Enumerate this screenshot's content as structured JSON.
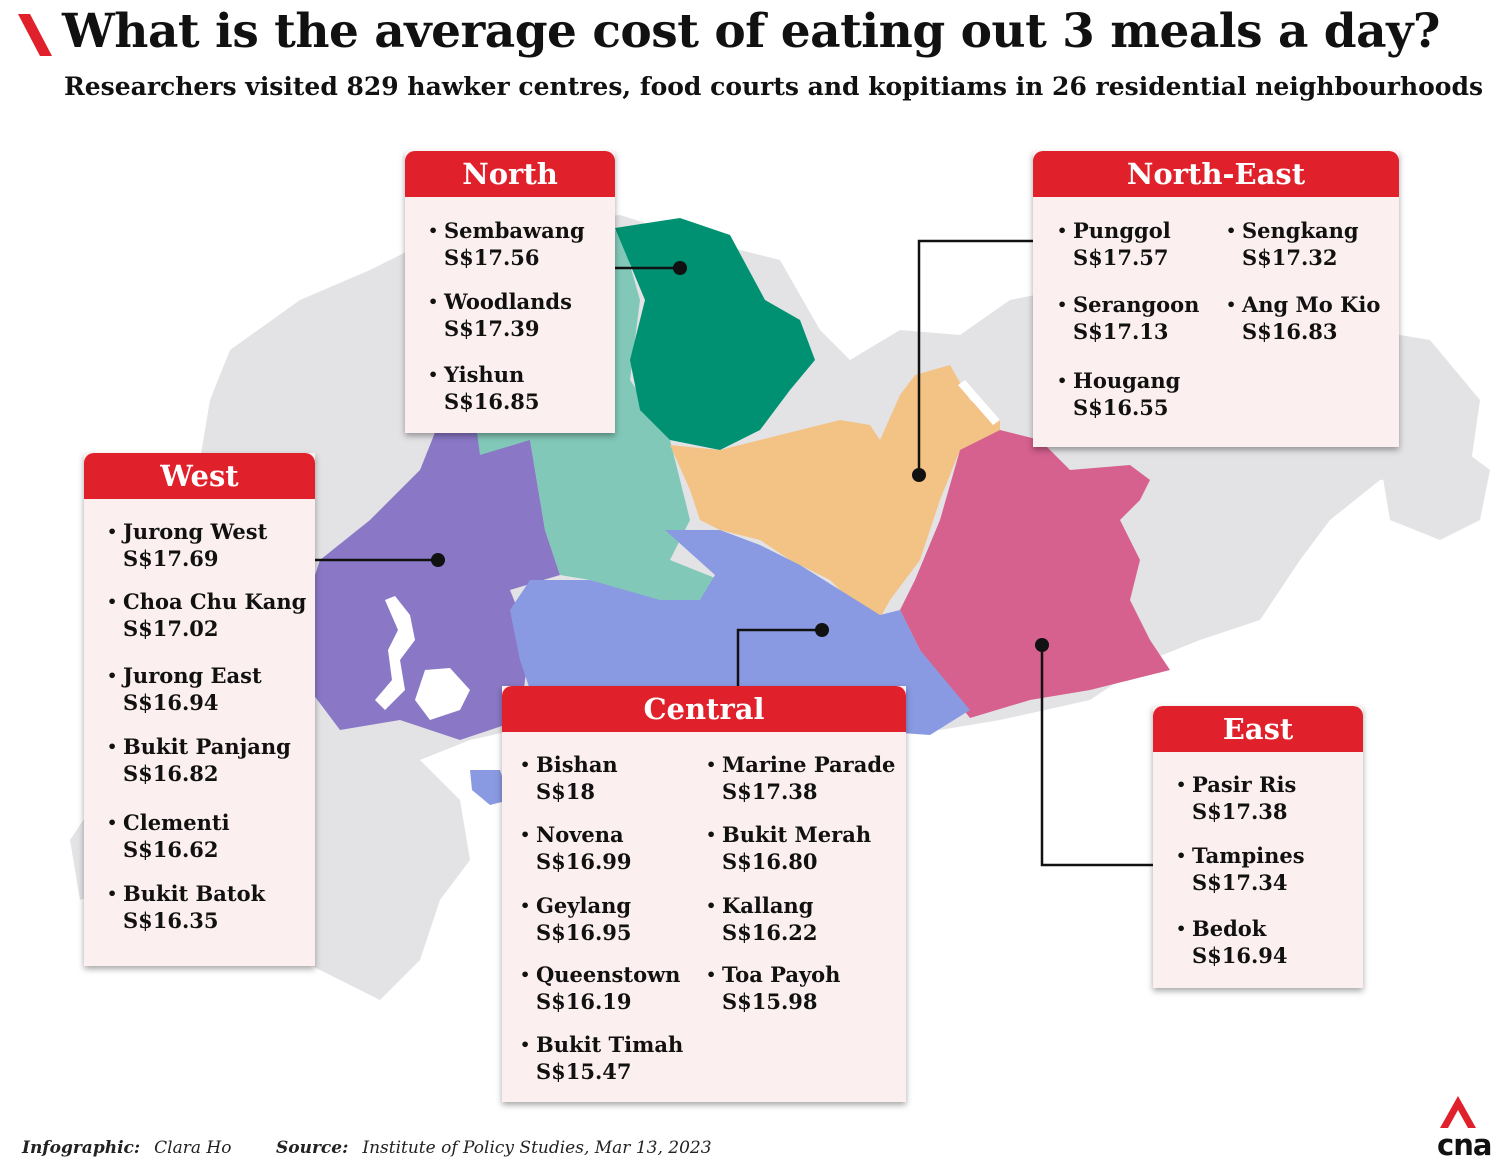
{
  "header": {
    "title": "What is the average cost of eating out 3 meals a day?",
    "subtitle": "Researchers visited 829 hawker centres, food courts and kopitiams in 26 residential neighbourhoods"
  },
  "colors": {
    "accent": "#e0202a",
    "card_bg": "#fcefef",
    "land": "#e3e3e5",
    "north": "#009172",
    "north_light": "#82c8b8",
    "north_east": "#f2c385",
    "east": "#d6608e",
    "west": "#8a78c6",
    "central": "#8a9ae2"
  },
  "regions": {
    "north": {
      "label": "North",
      "entries": [
        {
          "name": "Sembawang",
          "cost": "S$17.56"
        },
        {
          "name": "Woodlands",
          "cost": "S$17.39"
        },
        {
          "name": "Yishun",
          "cost": "S$16.85"
        }
      ]
    },
    "north_east": {
      "label": "North-East",
      "entries": [
        {
          "name": "Punggol",
          "cost": "S$17.57"
        },
        {
          "name": "Sengkang",
          "cost": "S$17.32"
        },
        {
          "name": "Serangoon",
          "cost": "S$17.13"
        },
        {
          "name": "Ang Mo Kio",
          "cost": "S$16.83"
        },
        {
          "name": "Hougang",
          "cost": "S$16.55"
        }
      ]
    },
    "west": {
      "label": "West",
      "entries": [
        {
          "name": "Jurong West",
          "cost": "S$17.69"
        },
        {
          "name": "Choa Chu Kang",
          "cost": "S$17.02"
        },
        {
          "name": "Jurong East",
          "cost": "S$16.94"
        },
        {
          "name": "Bukit Panjang",
          "cost": "S$16.82"
        },
        {
          "name": "Clementi",
          "cost": "S$16.62"
        },
        {
          "name": "Bukit Batok",
          "cost": "S$16.35"
        }
      ]
    },
    "central": {
      "label": "Central",
      "entries": [
        {
          "name": "Bishan",
          "cost": "S$18"
        },
        {
          "name": "Marine Parade",
          "cost": "S$17.38"
        },
        {
          "name": "Novena",
          "cost": "S$16.99"
        },
        {
          "name": "Bukit Merah",
          "cost": "S$16.80"
        },
        {
          "name": "Geylang",
          "cost": "S$16.95"
        },
        {
          "name": "Kallang",
          "cost": "S$16.22"
        },
        {
          "name": "Queenstown",
          "cost": "S$16.19"
        },
        {
          "name": "Toa Payoh",
          "cost": "S$15.98"
        },
        {
          "name": "Bukit Timah",
          "cost": "S$15.47"
        }
      ]
    },
    "east": {
      "label": "East",
      "entries": [
        {
          "name": "Pasir Ris",
          "cost": "S$17.38"
        },
        {
          "name": "Tampines",
          "cost": "S$17.34"
        },
        {
          "name": "Bedok",
          "cost": "S$16.94"
        }
      ]
    }
  },
  "footer": {
    "credit_label": "Infographic:",
    "credit_name": "Clara Ho",
    "source_label": "Source:",
    "source_text": "Institute of Policy Studies, Mar 13, 2023"
  },
  "logo": {
    "text": "cna"
  }
}
